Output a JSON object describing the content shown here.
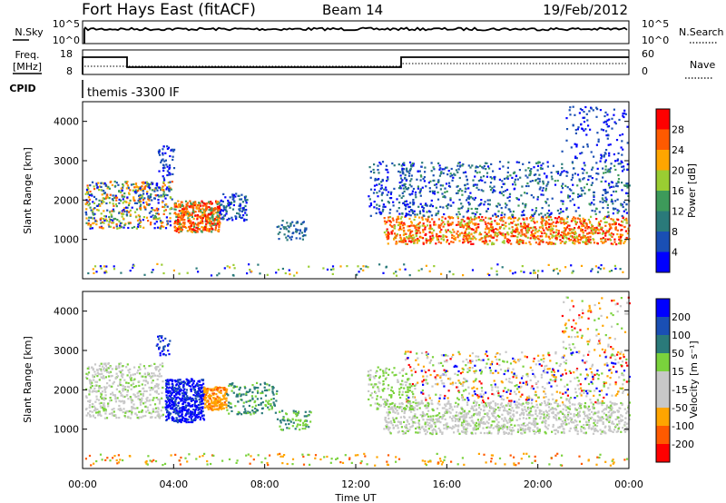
{
  "header": {
    "station": "Fort Hays East (fitACF)",
    "beam": "Beam 14",
    "date": "19/Feb/2012"
  },
  "noise_panel": {
    "left_label": "N.Sky",
    "right_label": "N.Search",
    "left_ticks": [
      "10^5",
      "10^0"
    ],
    "right_ticks": [
      "10^5",
      "10^0"
    ]
  },
  "freq_panel": {
    "left_label_1": "Freq.",
    "left_label_2": "[MHz]",
    "right_label": "Nave",
    "left_ticks": [
      "18",
      "8"
    ],
    "right_ticks": [
      "60",
      "0"
    ]
  },
  "cpid": {
    "label": "CPID",
    "program": "themis -3300 IF"
  },
  "colors": {
    "power_scale": [
      "#0000ff",
      "#1a4fb4",
      "#2a7a7a",
      "#3d9a5a",
      "#9acd32",
      "#ffa500",
      "#ff5a00",
      "#ff0000"
    ],
    "velocity_scale": [
      "#ff0000",
      "#ff5a00",
      "#ffa500",
      "#c8c8c8",
      "#c8c8c8",
      "#7ad23c",
      "#2a7a7a",
      "#1a4fb4",
      "#0000ff"
    ],
    "ground_scatter": "#c8c8c8"
  },
  "chart_data": [
    {
      "type": "heatmap",
      "panel": "power",
      "ylabel": "Slant Range [km]",
      "yticks": [
        "1000",
        "2000",
        "3000",
        "4000"
      ],
      "ylim": [
        0,
        4500
      ],
      "xlim_hours": [
        0,
        24
      ],
      "colorbar": {
        "label": "Power [dB]",
        "ticks": [
          "4",
          "8",
          "12",
          "16",
          "20",
          "24",
          "28"
        ]
      }
    },
    {
      "type": "heatmap",
      "panel": "velocity",
      "ylabel": "Slant Range [km]",
      "yticks": [
        "1000",
        "2000",
        "3000",
        "4000"
      ],
      "ylim": [
        0,
        4500
      ],
      "xlim_hours": [
        0,
        24
      ],
      "colorbar": {
        "label": "Velocity [m s⁻¹]",
        "ticks": [
          "200",
          "100",
          "50",
          "15",
          "-15",
          "-50",
          "-100",
          "-200"
        ]
      }
    }
  ],
  "x_axis": {
    "ticks": [
      "00:00",
      "04:00",
      "08:00",
      "12:00",
      "16:00",
      "20:00",
      "00:00"
    ],
    "label": "Time UT"
  }
}
